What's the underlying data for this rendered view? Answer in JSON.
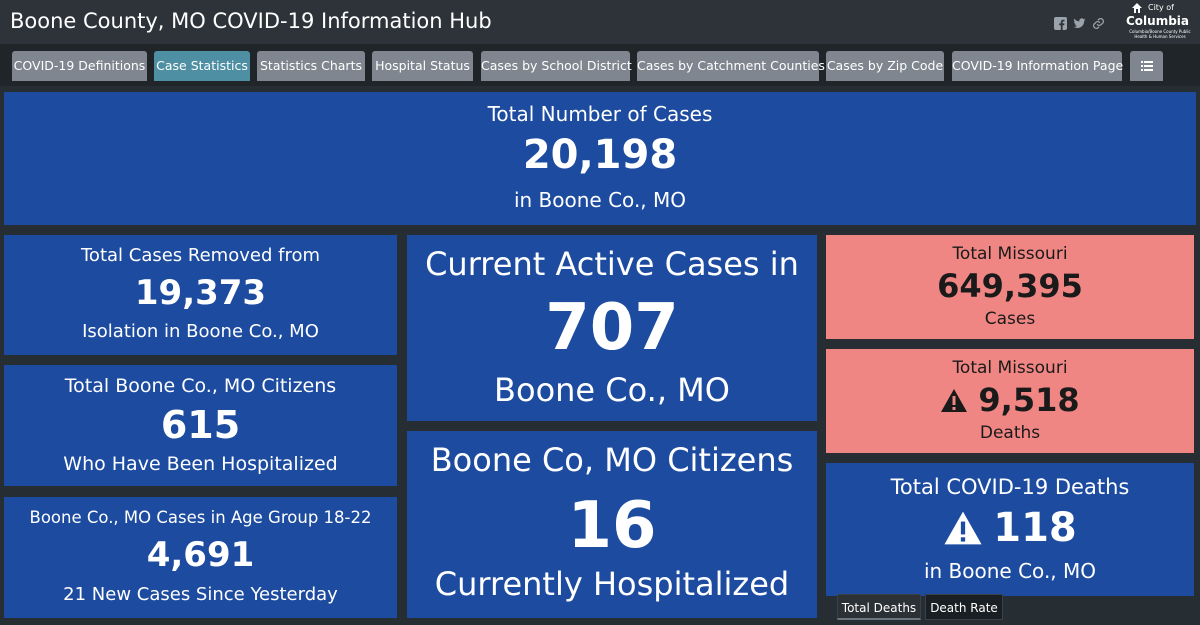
{
  "header": {
    "title": "Boone County, MO COVID-19 Information Hub",
    "logo": {
      "city_label": "City of",
      "name": "Columbia",
      "subtitle": "Columbia/Boone County Public Health & Human Services"
    },
    "icons": [
      "facebook-icon",
      "twitter-icon",
      "link-icon"
    ]
  },
  "tabs": [
    {
      "label": "COVID-19 Definitions",
      "active": false
    },
    {
      "label": "Case Statistics",
      "active": true
    },
    {
      "label": "Statistics Charts",
      "active": false
    },
    {
      "label": "Hospital Status",
      "active": false
    },
    {
      "label": "Cases by School District",
      "active": false
    },
    {
      "label": "Cases by Catchment Counties",
      "active": false
    },
    {
      "label": "Cases by Zip Code",
      "active": false
    },
    {
      "label": "COVID-19 Information Page",
      "active": false
    }
  ],
  "cards": {
    "total_cases": {
      "title": "Total Number of Cases",
      "value": "20,198",
      "subtitle": "in Boone Co., MO"
    },
    "removed": {
      "title": "Total Cases Removed from",
      "value": "19,373",
      "subtitle": "Isolation in Boone Co., MO"
    },
    "hospitalized_total": {
      "title": "Total Boone Co., MO Citizens",
      "value": "615",
      "subtitle": "Who Have Been Hospitalized"
    },
    "age_group": {
      "title": "Boone Co., MO Cases in Age Group 18-22",
      "value": "4,691",
      "subtitle": "21 New Cases Since Yesterday"
    },
    "active": {
      "title": "Current Active Cases in",
      "value": "707",
      "subtitle": "Boone Co., MO"
    },
    "current_hospitalized": {
      "title": "Boone Co, MO Citizens",
      "value": "16",
      "subtitle": "Currently Hospitalized"
    },
    "mo_cases": {
      "title": "Total Missouri",
      "value": "649,395",
      "subtitle": "Cases"
    },
    "mo_deaths": {
      "title": "Total Missouri",
      "value": "9,518",
      "subtitle": "Deaths"
    },
    "boone_deaths": {
      "title": "Total COVID-19 Deaths",
      "value": "118",
      "subtitle": "in Boone Co., MO"
    }
  },
  "bottom_tabs": [
    {
      "label": "Total Deaths",
      "active": true
    },
    {
      "label": "Death Rate",
      "active": false
    }
  ],
  "colors": {
    "card_blue": "#1c4ba0",
    "card_red": "#ef8683",
    "tab_active": "#4e8fa3",
    "tab_inactive": "#7f868f",
    "background": "#262d33"
  }
}
